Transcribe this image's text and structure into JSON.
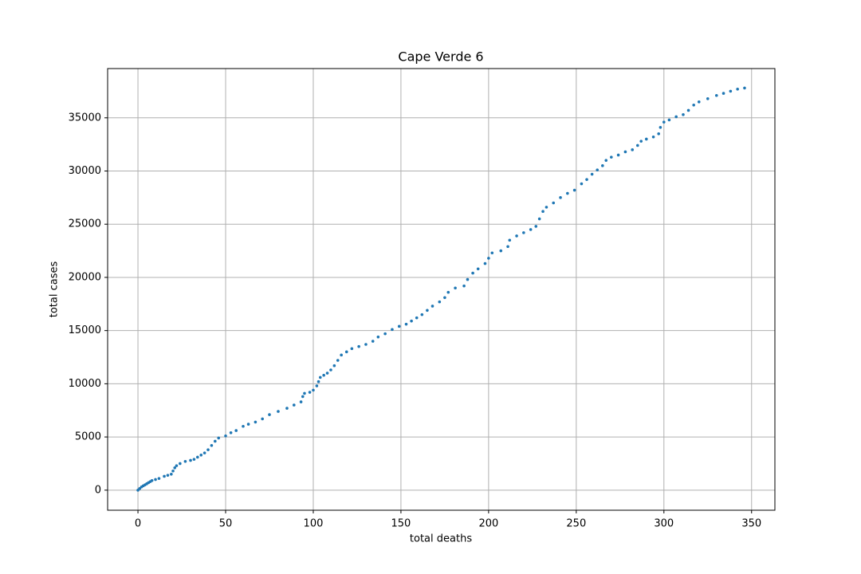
{
  "chart_data": {
    "type": "scatter",
    "title": "Cape Verde 6",
    "xlabel": "total deaths",
    "ylabel": "total cases",
    "color": "#1f77b4",
    "grid": true,
    "xlim": [
      -17.3,
      363.3
    ],
    "ylim": [
      -1887,
      39630
    ],
    "xticks": [
      0,
      50,
      100,
      150,
      200,
      250,
      300,
      350
    ],
    "yticks": [
      0,
      5000,
      10000,
      15000,
      20000,
      25000,
      30000,
      35000
    ],
    "x": [
      0,
      1,
      2,
      3,
      4,
      5,
      6,
      7,
      8,
      10,
      12,
      15,
      17,
      19,
      20,
      21,
      22,
      24,
      27,
      30,
      32,
      34,
      36,
      38,
      40,
      42,
      44,
      46,
      50,
      53,
      56,
      60,
      63,
      67,
      71,
      75,
      80,
      85,
      89,
      93,
      94,
      95,
      98,
      100,
      102,
      103,
      104,
      106,
      108,
      110,
      112,
      114,
      116,
      119,
      122,
      126,
      130,
      134,
      137,
      141,
      145,
      149,
      153,
      156,
      159,
      162,
      165,
      168,
      172,
      175,
      177,
      181,
      186,
      188,
      191,
      194,
      198,
      200,
      202,
      207,
      211,
      212,
      216,
      220,
      224,
      227,
      229,
      231,
      233,
      237,
      241,
      245,
      249,
      253,
      256,
      259,
      262,
      265,
      267,
      270,
      274,
      278,
      282,
      285,
      287,
      290,
      294,
      297,
      298,
      300,
      303,
      307,
      311,
      314,
      317,
      320,
      325,
      330,
      334,
      338,
      342,
      346
    ],
    "values": [
      0,
      150,
      300,
      400,
      500,
      600,
      700,
      800,
      900,
      1000,
      1100,
      1300,
      1400,
      1500,
      1800,
      2100,
      2300,
      2500,
      2700,
      2800,
      2900,
      3100,
      3300,
      3500,
      3800,
      4200,
      4600,
      4900,
      5100,
      5400,
      5600,
      6000,
      6200,
      6400,
      6700,
      7100,
      7400,
      7700,
      8000,
      8300,
      8800,
      9100,
      9200,
      9400,
      9800,
      10200,
      10600,
      10800,
      11000,
      11300,
      11700,
      12200,
      12700,
      13000,
      13300,
      13500,
      13700,
      14000,
      14400,
      14700,
      15100,
      15400,
      15600,
      15900,
      16200,
      16500,
      16900,
      17300,
      17700,
      18100,
      18600,
      19000,
      19200,
      19800,
      20400,
      20800,
      21300,
      21800,
      22300,
      22500,
      22900,
      23500,
      23900,
      24200,
      24500,
      24800,
      25500,
      26200,
      26600,
      27000,
      27500,
      27900,
      28200,
      28800,
      29200,
      29700,
      30100,
      30500,
      31000,
      31300,
      31500,
      31800,
      32000,
      32400,
      32800,
      33000,
      33200,
      33500,
      34100,
      34600,
      34800,
      35100,
      35300,
      35700,
      36200,
      36500,
      36800,
      37100,
      37300,
      37500,
      37700,
      37800
    ]
  }
}
